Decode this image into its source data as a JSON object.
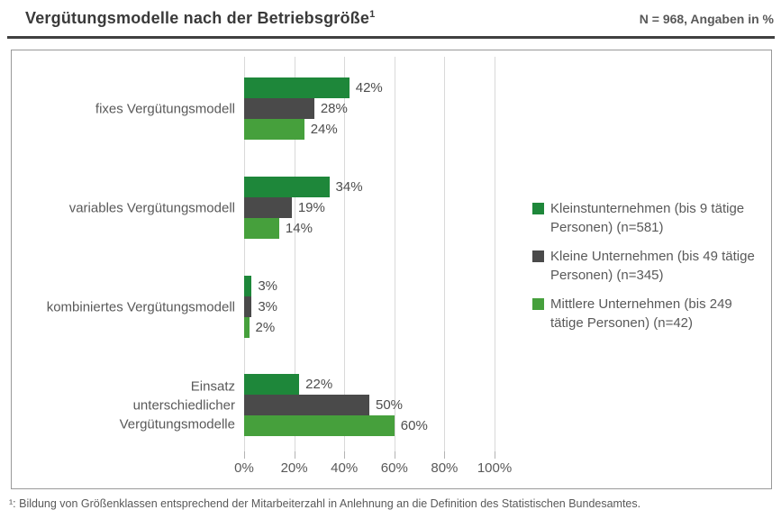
{
  "header": {
    "title": "Vergütungsmodelle nach der Betriebsgröße",
    "title_superscript": "1",
    "note": "N = 968, Angaben in %"
  },
  "footnote": {
    "text": "¹: Bildung von Größenklassen entsprechend der Mitarbeiterzahl in Anlehnung an die Definition des Statistischen Bundesamtes."
  },
  "chart_data": {
    "type": "bar",
    "orientation": "horizontal",
    "title": "Vergütungsmodelle nach der Betriebsgröße",
    "categories": [
      "fixes Vergütungsmodell",
      "variables Vergütungsmodell",
      "kombiniertes Vergütungsmodell",
      "Einsatz\nunterschiedlicher\nVergütungsmodelle"
    ],
    "series": [
      {
        "name": "Kleinstunternehmen (bis 9 tätige Personen) (n=581)",
        "color": "#1e873a",
        "values": [
          42,
          34,
          3,
          22
        ]
      },
      {
        "name": "Kleine Unternehmen (bis 49 tätige Personen) (n=345)",
        "color": "#4a4a4a",
        "values": [
          28,
          19,
          3,
          50
        ]
      },
      {
        "name": "Mittlere Unternehmen (bis 249 tätige Personen) (n=42)",
        "color": "#46a03c",
        "values": [
          24,
          14,
          2,
          60
        ]
      }
    ],
    "value_suffix": "%",
    "x_ticks": [
      "0%",
      "20%",
      "40%",
      "60%",
      "80%",
      "100%"
    ],
    "xlim": [
      0,
      100
    ],
    "grid": true,
    "legend_position": "right"
  }
}
